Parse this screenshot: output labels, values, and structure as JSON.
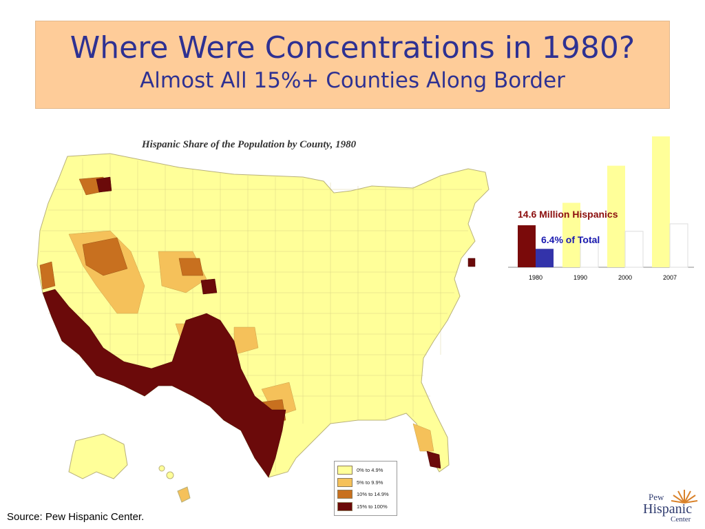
{
  "slide": {
    "title": "Where Were Concentrations in 1980?",
    "subtitle": "Almost All 15%+ Counties Along Border",
    "source": "Source:  Pew Hispanic Center."
  },
  "map": {
    "title": "Hispanic Share of the Population by County, 1980",
    "legend": [
      {
        "label": "0% to 4.9%",
        "color": "#ffff99"
      },
      {
        "label": "5% to 9.9%",
        "color": "#f5c15a"
      },
      {
        "label": "10% to 14.9%",
        "color": "#c8701f"
      },
      {
        "label": "15% to 100%",
        "color": "#6b0a0a"
      }
    ]
  },
  "chart_data": {
    "type": "bar",
    "categories": [
      "1980",
      "1990",
      "2000",
      "2007"
    ],
    "series": [
      {
        "values": [
          14.6,
          22.4,
          35.3,
          45.5
        ],
        "colors": [
          "#7a0a0a",
          "#ffff99",
          "#ffff99",
          "#ffff99"
        ]
      },
      {
        "values": [
          6.4,
          9.0,
          12.5,
          15.1
        ],
        "colors": [
          "#3333aa",
          "#ffffff",
          "#ffffff",
          "#ffffff"
        ]
      }
    ],
    "annotations": [
      "14.6 Million Hispanics",
      "6.4% of Total"
    ]
  },
  "logo": {
    "line1": "Pew",
    "line2": "Hispanic",
    "line3": "Center"
  }
}
